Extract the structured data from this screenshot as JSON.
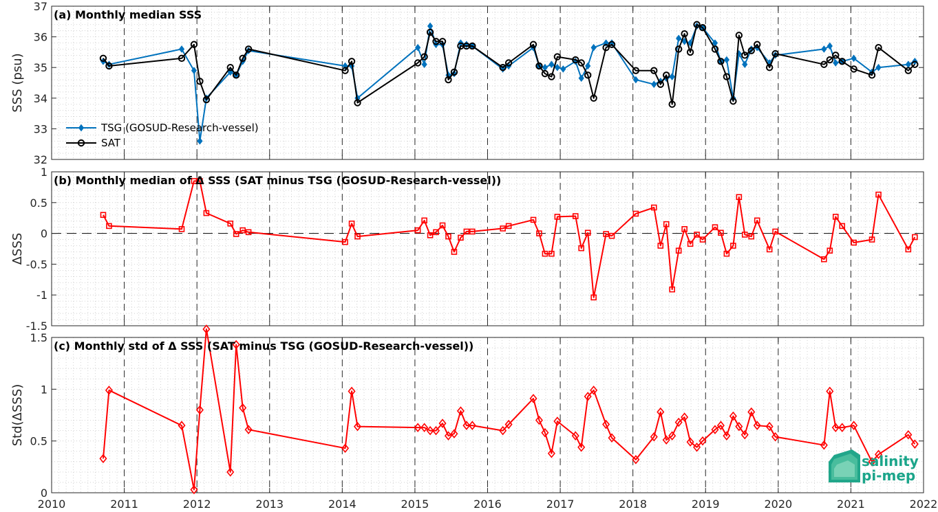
{
  "chart_data": [
    {
      "type": "line",
      "title": "(a) Monthly median SSS",
      "xlabel": "",
      "ylabel": "SSS (psu)",
      "xlim": [
        2010,
        2022
      ],
      "ylim": [
        32,
        37
      ],
      "yticks": [
        32,
        33,
        34,
        35,
        36,
        37
      ],
      "xticks": [
        2010,
        2011,
        2012,
        2013,
        2014,
        2015,
        2016,
        2017,
        2018,
        2019,
        2020,
        2021,
        2022
      ],
      "grid": true,
      "legend": "lower-left",
      "series": [
        {
          "name": "TSG (GOSUD-Research-vessel)",
          "color": "#0072bd",
          "marker": "diamond",
          "x": [
            2010.71,
            2010.79,
            2011.79,
            2011.96,
            2012.04,
            2012.13,
            2012.46,
            2012.54,
            2012.63,
            2012.71,
            2014.04,
            2014.13,
            2014.21,
            2015.04,
            2015.13,
            2015.21,
            2015.29,
            2015.38,
            2015.46,
            2015.54,
            2015.63,
            2015.71,
            2015.79,
            2016.21,
            2016.29,
            2016.63,
            2016.71,
            2016.79,
            2016.88,
            2016.96,
            2017.04,
            2017.21,
            2017.29,
            2017.38,
            2017.46,
            2017.63,
            2017.71,
            2018.04,
            2018.29,
            2018.38,
            2018.46,
            2018.54,
            2018.63,
            2018.71,
            2018.79,
            2018.88,
            2018.96,
            2019.13,
            2019.21,
            2019.29,
            2019.38,
            2019.46,
            2019.54,
            2019.63,
            2019.71,
            2019.88,
            2019.96,
            2020.63,
            2020.71,
            2020.79,
            2020.88,
            2021.04,
            2021.29,
            2021.38,
            2021.79,
            2021.88
          ],
          "values": [
            35.2,
            35.1,
            35.6,
            34.9,
            32.6,
            34,
            34.85,
            34.75,
            35.2,
            35.55,
            35.05,
            35.05,
            34,
            35.65,
            35.1,
            36.35,
            35.75,
            35.75,
            34.75,
            34.8,
            35.8,
            35.75,
            35.7,
            34.95,
            35.05,
            35.65,
            35.05,
            35,
            35.1,
            35,
            34.95,
            35.2,
            34.65,
            35.05,
            35.65,
            35.8,
            35.8,
            34.6,
            34.45,
            34.55,
            34.65,
            34.7,
            35.95,
            35.85,
            35.8,
            36.35,
            36.3,
            35.8,
            35.2,
            35.25,
            34,
            35.45,
            35.1,
            35.6,
            35.65,
            35.15,
            35.4,
            35.6,
            35.7,
            35.15,
            35.2,
            35.3,
            34.85,
            35,
            35.1,
            35.2
          ]
        },
        {
          "name": "SAT",
          "color": "#000000",
          "marker": "circle",
          "x": [
            2010.71,
            2010.79,
            2011.79,
            2011.96,
            2012.04,
            2012.13,
            2012.46,
            2012.54,
            2012.63,
            2012.71,
            2014.04,
            2014.13,
            2014.21,
            2015.04,
            2015.13,
            2015.21,
            2015.29,
            2015.38,
            2015.46,
            2015.54,
            2015.63,
            2015.71,
            2015.79,
            2016.21,
            2016.29,
            2016.63,
            2016.71,
            2016.79,
            2016.88,
            2016.96,
            2017.21,
            2017.29,
            2017.38,
            2017.46,
            2017.63,
            2017.71,
            2018.04,
            2018.29,
            2018.38,
            2018.46,
            2018.54,
            2018.63,
            2018.71,
            2018.79,
            2018.88,
            2018.96,
            2019.13,
            2019.21,
            2019.29,
            2019.38,
            2019.46,
            2019.54,
            2019.63,
            2019.71,
            2019.88,
            2019.96,
            2020.63,
            2020.71,
            2020.79,
            2020.88,
            2021.04,
            2021.29,
            2021.38,
            2021.79,
            2021.88
          ],
          "values": [
            35.3,
            35.05,
            35.3,
            35.75,
            34.55,
            33.95,
            35,
            34.75,
            35.3,
            35.6,
            34.9,
            35.2,
            33.85,
            35.15,
            35.35,
            36.15,
            35.85,
            35.85,
            34.6,
            34.85,
            35.7,
            35.7,
            35.7,
            35,
            35.15,
            35.75,
            35.05,
            34.8,
            34.7,
            35.35,
            35.25,
            35.15,
            34.75,
            34,
            35.65,
            35.75,
            34.9,
            34.9,
            34.45,
            34.75,
            33.8,
            35.6,
            36.1,
            35.5,
            36.4,
            36.3,
            35.6,
            35.2,
            34.7,
            33.9,
            36.05,
            35.4,
            35.55,
            35.75,
            35,
            35.45,
            35.1,
            35.25,
            35.4,
            35.2,
            34.95,
            34.75,
            35.65,
            34.9,
            35.1
          ]
        }
      ]
    },
    {
      "type": "line",
      "title": "(b) Monthly median of Δ SSS (SAT minus TSG (GOSUD-Research-vessel))",
      "xlabel": "",
      "ylabel": "ΔSSS",
      "xlim": [
        2010,
        2022
      ],
      "ylim": [
        -1.5,
        1
      ],
      "yticks": [
        -1.5,
        -1,
        -0.5,
        0,
        0.5,
        1
      ],
      "xticks": [
        2010,
        2011,
        2012,
        2013,
        2014,
        2015,
        2016,
        2017,
        2018,
        2019,
        2020,
        2021,
        2022
      ],
      "grid": true,
      "reference_line": 0,
      "series": [
        {
          "color": "#ff0000",
          "marker": "square",
          "x": [
            2010.71,
            2010.79,
            2011.79,
            2011.96,
            2012.04,
            2012.13,
            2012.46,
            2012.54,
            2012.63,
            2012.71,
            2014.04,
            2014.13,
            2014.21,
            2015.04,
            2015.13,
            2015.21,
            2015.29,
            2015.38,
            2015.46,
            2015.54,
            2015.63,
            2015.71,
            2015.79,
            2016.21,
            2016.29,
            2016.63,
            2016.71,
            2016.79,
            2016.88,
            2016.96,
            2017.21,
            2017.29,
            2017.38,
            2017.46,
            2017.63,
            2017.71,
            2018.04,
            2018.29,
            2018.38,
            2018.46,
            2018.54,
            2018.63,
            2018.71,
            2018.79,
            2018.88,
            2018.96,
            2019.13,
            2019.21,
            2019.29,
            2019.38,
            2019.46,
            2019.54,
            2019.63,
            2019.71,
            2019.88,
            2019.96,
            2020.63,
            2020.71,
            2020.79,
            2020.88,
            2021.04,
            2021.29,
            2021.38,
            2021.79,
            2021.88
          ],
          "values": [
            0.3,
            0.12,
            0.07,
            0.85,
            0.85,
            0.33,
            0.16,
            -0.01,
            0.05,
            0.02,
            -0.14,
            0.16,
            -0.05,
            0.05,
            0.21,
            -0.03,
            0.02,
            0.13,
            -0.05,
            -0.3,
            -0.07,
            0.03,
            0.03,
            0.08,
            0.12,
            0.22,
            0,
            -0.33,
            -0.33,
            0.27,
            0.28,
            -0.24,
            0.01,
            -1.04,
            -0.01,
            -0.04,
            0.32,
            0.42,
            -0.2,
            0.15,
            -0.91,
            -0.28,
            0.07,
            -0.17,
            -0.02,
            -0.1,
            0.1,
            0.01,
            -0.33,
            -0.2,
            0.59,
            -0.02,
            -0.05,
            0.21,
            -0.26,
            0.03,
            -0.42,
            -0.28,
            0.27,
            0.12,
            -0.15,
            -0.1,
            0.63,
            -0.26,
            -0.06
          ]
        }
      ]
    },
    {
      "type": "line",
      "title": "(c) Monthly std of Δ SSS (SAT minus TSG (GOSUD-Research-vessel))",
      "xlabel": "",
      "ylabel": "Std(ΔSSS)",
      "xlim": [
        2010,
        2022
      ],
      "ylim": [
        0,
        1.5
      ],
      "yticks": [
        0,
        0.5,
        1,
        1.5
      ],
      "xticks": [
        2010,
        2011,
        2012,
        2013,
        2014,
        2015,
        2016,
        2017,
        2018,
        2019,
        2020,
        2021,
        2022
      ],
      "grid": true,
      "series": [
        {
          "color": "#ff0000",
          "marker": "diamond",
          "x": [
            2010.71,
            2010.79,
            2011.79,
            2011.96,
            2012.04,
            2012.13,
            2012.46,
            2012.54,
            2012.63,
            2012.71,
            2014.04,
            2014.13,
            2014.21,
            2015.04,
            2015.13,
            2015.21,
            2015.29,
            2015.38,
            2015.46,
            2015.54,
            2015.63,
            2015.71,
            2015.79,
            2016.21,
            2016.29,
            2016.63,
            2016.71,
            2016.79,
            2016.88,
            2016.96,
            2017.21,
            2017.29,
            2017.38,
            2017.46,
            2017.63,
            2017.71,
            2018.04,
            2018.29,
            2018.38,
            2018.46,
            2018.54,
            2018.63,
            2018.71,
            2018.79,
            2018.88,
            2018.96,
            2019.13,
            2019.21,
            2019.29,
            2019.38,
            2019.46,
            2019.54,
            2019.63,
            2019.71,
            2019.88,
            2019.96,
            2020.63,
            2020.71,
            2020.79,
            2020.88,
            2021.04,
            2021.29,
            2021.38,
            2021.79,
            2021.88
          ],
          "values": [
            0.33,
            0.99,
            0.65,
            0.03,
            0.8,
            1.58,
            0.2,
            1.43,
            0.82,
            0.61,
            0.43,
            0.98,
            0.64,
            0.63,
            0.63,
            0.6,
            0.6,
            0.67,
            0.55,
            0.57,
            0.79,
            0.65,
            0.65,
            0.6,
            0.66,
            0.91,
            0.7,
            0.58,
            0.38,
            0.69,
            0.55,
            0.44,
            0.93,
            0.99,
            0.66,
            0.53,
            0.32,
            0.54,
            0.78,
            0.51,
            0.55,
            0.68,
            0.73,
            0.49,
            0.44,
            0.5,
            0.61,
            0.65,
            0.55,
            0.74,
            0.64,
            0.56,
            0.78,
            0.65,
            0.64,
            0.54,
            0.46,
            0.98,
            0.63,
            0.63,
            0.65,
            0.3,
            0.37,
            0.56,
            0.47
          ]
        }
      ]
    }
  ],
  "logo": {
    "line1": "salinity",
    "line2": "pi-mep",
    "color": "#1ba58a"
  }
}
